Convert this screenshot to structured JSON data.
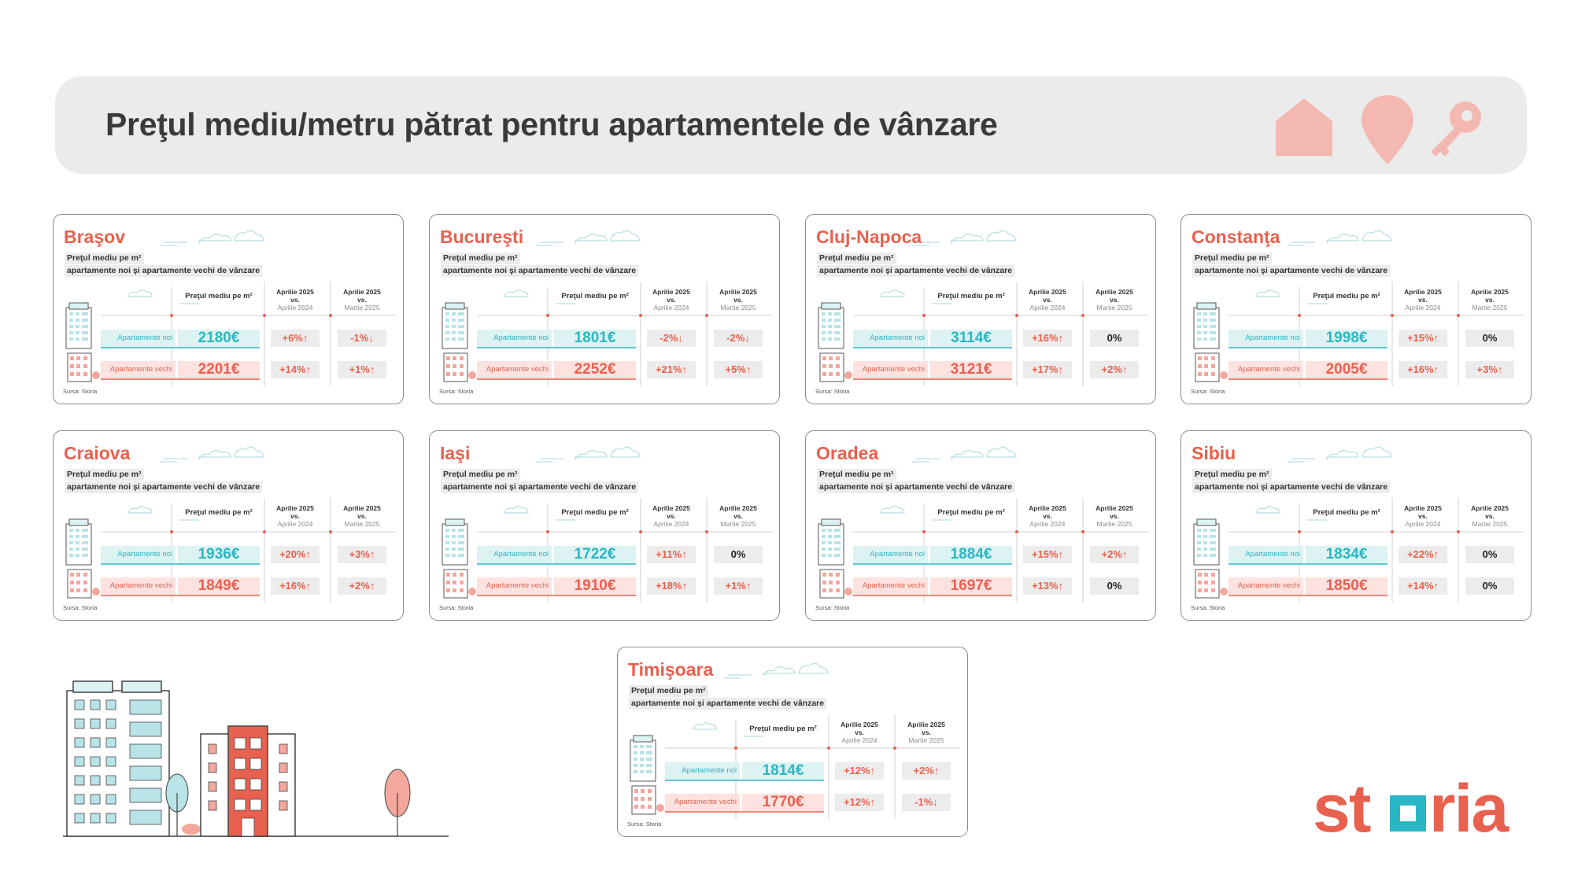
{
  "header": {
    "title": "Preţul mediu/metru pătrat pentru apartamentele de vânzare",
    "icons": [
      "house-icon",
      "location-pin-icon",
      "key-icon"
    ],
    "background_color": "#ebebeb",
    "icon_color": "#f3b8b0"
  },
  "colors": {
    "accent_red": "#e8604e",
    "accent_teal": "#2bb6c4",
    "new_bg": "#dcf2f3",
    "old_bg": "#fde2df",
    "change_bg": "#ececec"
  },
  "labels": {
    "subtitle_line1": "Preţul mediu pe m²",
    "subtitle_line2": "apartamente noi şi apartamente vechi de vânzare",
    "price_header": "Preţul mediu pe m²",
    "col1_main": "Aprilie 2025",
    "col1_vs": "vs.",
    "col1_ref": "Aprilie 2024",
    "col2_main": "Aprilie 2025",
    "col2_vs": "vs.",
    "col2_ref": "Martie 2025",
    "new_label": "Apartamente noi",
    "old_label": "Apartamente vechi",
    "source": "Sursa: Storia"
  },
  "cities": [
    {
      "name": "Braşov",
      "new_price": "2180€",
      "new_yoy": "+6%↑",
      "new_mom": "-1%↓",
      "old_price": "2201€",
      "old_yoy": "+14%↑",
      "old_mom": "+1%↑"
    },
    {
      "name": "Bucureşti",
      "new_price": "1801€",
      "new_yoy": "-2%↓",
      "new_mom": "-2%↓",
      "old_price": "2252€",
      "old_yoy": "+21%↑",
      "old_mom": "+5%↑"
    },
    {
      "name": "Cluj-Napoca",
      "new_price": "3114€",
      "new_yoy": "+16%↑",
      "new_mom": "0%",
      "old_price": "3121€",
      "old_yoy": "+17%↑",
      "old_mom": "+2%↑"
    },
    {
      "name": "Constanţa",
      "new_price": "1998€",
      "new_yoy": "+15%↑",
      "new_mom": "0%",
      "old_price": "2005€",
      "old_yoy": "+16%↑",
      "old_mom": "+3%↑"
    },
    {
      "name": "Craiova",
      "new_price": "1936€",
      "new_yoy": "+20%↑",
      "new_mom": "+3%↑",
      "old_price": "1849€",
      "old_yoy": "+16%↑",
      "old_mom": "+2%↑"
    },
    {
      "name": "Iaşi",
      "new_price": "1722€",
      "new_yoy": "+11%↑",
      "new_mom": "0%",
      "old_price": "1910€",
      "old_yoy": "+18%↑",
      "old_mom": "+1%↑"
    },
    {
      "name": "Oradea",
      "new_price": "1884€",
      "new_yoy": "+15%↑",
      "new_mom": "+2%↑",
      "old_price": "1697€",
      "old_yoy": "+13%↑",
      "old_mom": "0%"
    },
    {
      "name": "Sibiu",
      "new_price": "1834€",
      "new_yoy": "+22%↑",
      "new_mom": "0%",
      "old_price": "1850€",
      "old_yoy": "+14%↑",
      "old_mom": "0%"
    },
    {
      "name": "Timişoara",
      "new_price": "1814€",
      "new_yoy": "+12%↑",
      "new_mom": "+2%↑",
      "old_price": "1770€",
      "old_yoy": "+12%↑",
      "old_mom": "-1%↓"
    }
  ],
  "logo": {
    "text": "storia",
    "color": "#e8604e",
    "square_color": "#2bb6c4"
  }
}
